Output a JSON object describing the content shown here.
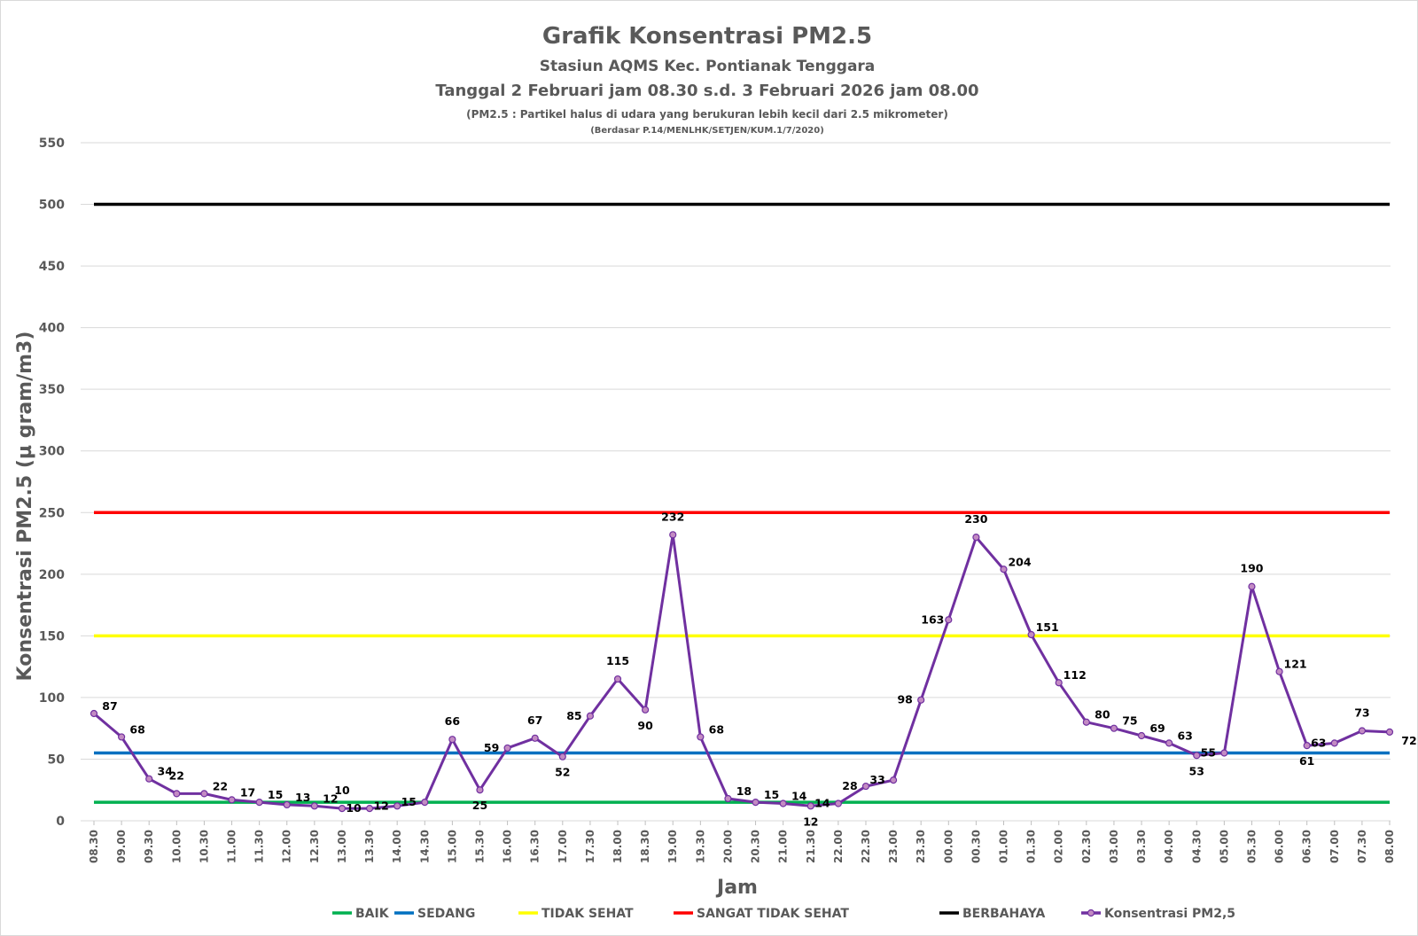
{
  "chart_data": {
    "type": "line",
    "title": "Grafik Konsentrasi PM2.5",
    "subtitle1": "Stasiun AQMS Kec. Pontianak Tenggara",
    "subtitle2": "Tanggal 2 Februari jam 08.30 s.d. 3 Februari 2026 jam 08.00",
    "note1": "(PM2.5 : Partikel halus di udara yang berukuran lebih kecil dari 2.5 mikrometer)",
    "note2": "(Berdasar P.14/MENLHK/SETJEN/KUM.1/7/2020)",
    "xlabel": "Jam",
    "ylabel": "Konsentrasi PM2.5 (µ gram/m3)",
    "ylim": [
      0,
      550
    ],
    "yticks": [
      0,
      50,
      100,
      150,
      200,
      250,
      300,
      350,
      400,
      450,
      500,
      550
    ],
    "grid": true,
    "legend_position": "bottom",
    "categories": [
      "08.30",
      "09.00",
      "09.30",
      "10.00",
      "10.30",
      "11.00",
      "11.30",
      "12.00",
      "12.30",
      "13.00",
      "13.30",
      "14.00",
      "14.30",
      "15.00",
      "15.30",
      "16.00",
      "16.30",
      "17.00",
      "17.30",
      "18.00",
      "18.30",
      "19.00",
      "19.30",
      "20.00",
      "20.30",
      "21.00",
      "21.30",
      "22.00",
      "22.30",
      "23.00",
      "23.30",
      "00.00",
      "00.30",
      "01.00",
      "01.30",
      "02.00",
      "02.30",
      "03.00",
      "03.30",
      "04.00",
      "04.30",
      "05.00",
      "05.30",
      "06.00",
      "06.30",
      "07.00",
      "07.30",
      "08.00"
    ],
    "series": [
      {
        "name": "Konsentrasi PM2,5",
        "color": "#7030a0",
        "marker_color": "#c38bc3",
        "values": [
          87,
          68,
          34,
          22,
          22,
          17,
          15,
          13,
          12,
          10,
          10,
          12,
          15,
          66,
          25,
          59,
          67,
          52,
          85,
          115,
          90,
          232,
          68,
          18,
          15,
          14,
          12,
          14,
          28,
          33,
          98,
          163,
          230,
          204,
          151,
          112,
          80,
          75,
          69,
          63,
          53,
          55,
          190,
          121,
          61,
          63,
          73,
          72
        ]
      }
    ],
    "thresholds": [
      {
        "name": "BAIK",
        "value": 15,
        "color": "#00b050"
      },
      {
        "name": "SEDANG",
        "value": 55,
        "color": "#0070c0"
      },
      {
        "name": "TIDAK SEHAT",
        "value": 150,
        "color": "#ffff00"
      },
      {
        "name": "SANGAT TIDAK SEHAT",
        "value": 250,
        "color": "#ff0000"
      },
      {
        "name": "BERBAHAYA",
        "value": 500,
        "color": "#000000"
      }
    ]
  }
}
